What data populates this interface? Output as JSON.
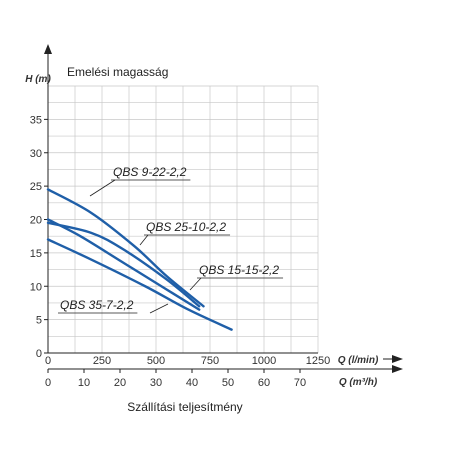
{
  "chart_data": {
    "type": "line",
    "title": "Emelési magasság",
    "xlabel": "Szállítási teljesítmény",
    "ylabel": "H (m)",
    "x_axis_primary": {
      "label": "Q (l/min)",
      "ticks": [
        0,
        250,
        500,
        750,
        1000,
        1250
      ],
      "range": [
        0,
        1250
      ]
    },
    "x_axis_secondary": {
      "label": "Q (m³/h)",
      "ticks": [
        0,
        10,
        20,
        30,
        40,
        50,
        60,
        70
      ],
      "range": [
        0,
        75
      ]
    },
    "y_axis": {
      "ticks": [
        0,
        5,
        10,
        15,
        20,
        25,
        30,
        35
      ],
      "range": [
        0,
        40
      ]
    },
    "grid": true,
    "line_color": "#1f5fa8",
    "series": [
      {
        "name": "QBS 9-22-2,2",
        "points": [
          [
            0,
            24.5
          ],
          [
            200,
            21
          ],
          [
            400,
            16
          ],
          [
            550,
            11.5
          ],
          [
            720,
            7
          ]
        ]
      },
      {
        "name": "QBS 25-10-2,2",
        "points": [
          [
            0,
            20
          ],
          [
            150,
            17.5
          ],
          [
            350,
            13.5
          ],
          [
            550,
            9.5
          ],
          [
            700,
            6.5
          ]
        ]
      },
      {
        "name": "QBS 15-15-2,2",
        "points": [
          [
            0,
            19.5
          ],
          [
            200,
            18
          ],
          [
            350,
            15.5
          ],
          [
            550,
            11
          ],
          [
            700,
            7
          ]
        ]
      },
      {
        "name": "QBS 35-7-2,2",
        "points": [
          [
            0,
            17
          ],
          [
            200,
            14
          ],
          [
            450,
            10
          ],
          [
            650,
            6.5
          ],
          [
            850,
            3.5
          ]
        ]
      }
    ]
  }
}
